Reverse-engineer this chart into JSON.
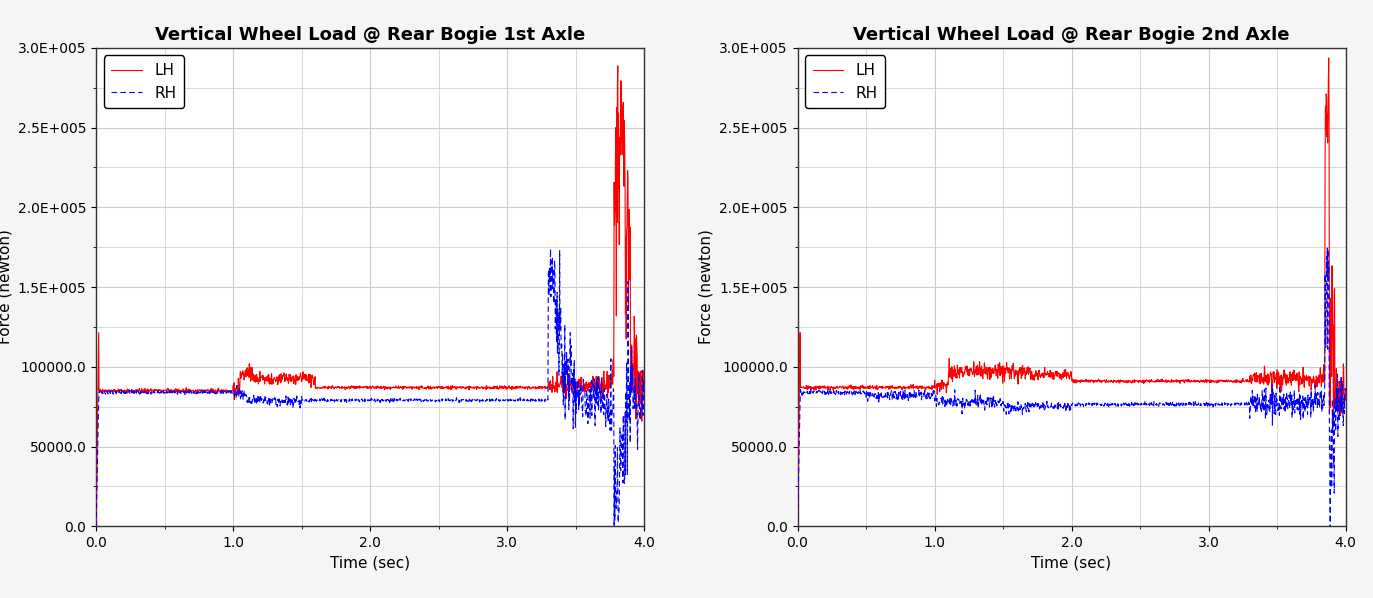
{
  "title1": "Vertical Wheel Load @ Rear Bogie 1st Axle",
  "title2": "Vertical Wheel Load @ Rear Bogie 2nd Axle",
  "xlabel": "Time (sec)",
  "ylabel": "Force (newton)",
  "xlim": [
    0.0,
    4.0
  ],
  "ylim": [
    0.0,
    300000.0
  ],
  "yticks": [
    0.0,
    50000.0,
    100000.0,
    150000.0,
    200000.0,
    250000.0,
    300000.0
  ],
  "ytick_labels": [
    "0.0",
    "50000.0",
    "100000.0",
    "1.5E+005",
    "2.0E+005",
    "2.5E+005",
    "3.0E+005"
  ],
  "xticks": [
    0.0,
    1.0,
    2.0,
    3.0,
    4.0
  ],
  "lh_color": "#ff0000",
  "rh_color": "#0000ff",
  "plot_bg_color": "#ffffff",
  "fig_bg_color": "#f5f5f5",
  "grid_color": "#cccccc",
  "title_fontsize": 13,
  "label_fontsize": 11,
  "tick_fontsize": 10,
  "legend_fontsize": 11
}
